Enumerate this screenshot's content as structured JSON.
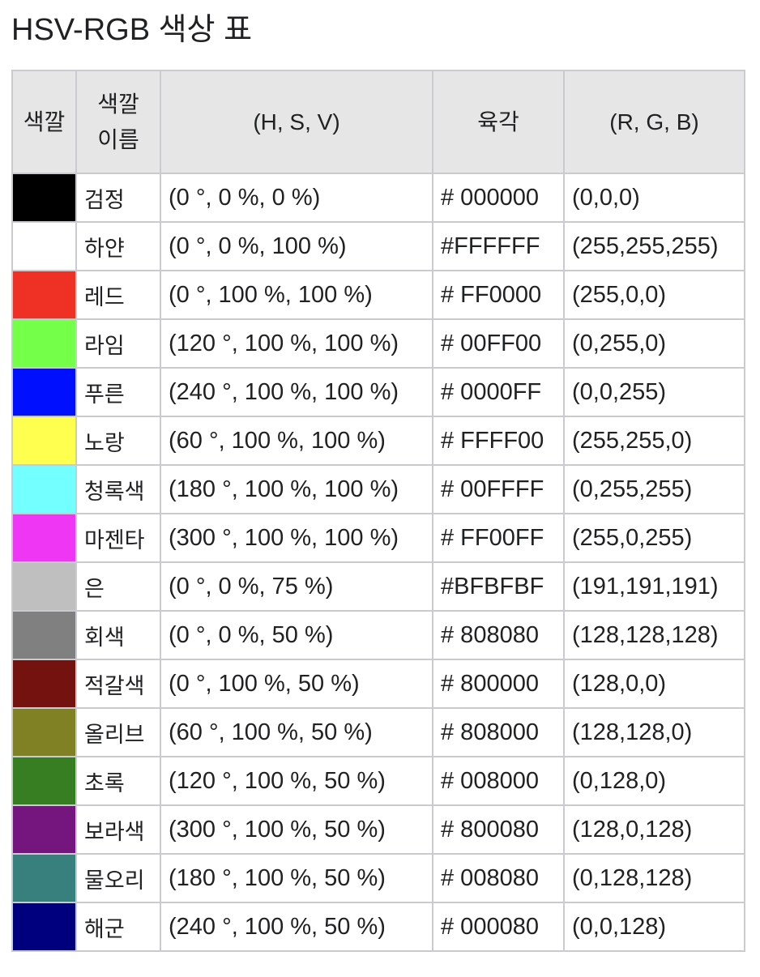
{
  "title": "HSV-RGB 색상 표",
  "headers": {
    "swatch": "색깔",
    "name_line1": "색깔",
    "name_line2": "이름",
    "hsv": "(H, S, V)",
    "hex": "육각",
    "rgb": "(R, G, B)"
  },
  "rows": [
    {
      "color": "#000000",
      "name": "검정",
      "hsv": "(0 °, 0 %, 0 %)",
      "hex": "# 000000",
      "rgb": "(0,0,0)"
    },
    {
      "color": "#FFFFFF",
      "name": "하얀",
      "hsv": "(0 °, 0 %, 100 %)",
      "hex": "#FFFFFF",
      "rgb": "(255,255,255)"
    },
    {
      "color": "#EE3124",
      "name": "레드",
      "hsv": "(0 °, 100 %, 100 %)",
      "hex": "# FF0000",
      "rgb": "(255,0,0)"
    },
    {
      "color": "#74FF48",
      "name": "라임",
      "hsv": "(120 °, 100 %, 100 %)",
      "hex": "# 00FF00",
      "rgb": "(0,255,0)"
    },
    {
      "color": "#0010FF",
      "name": "푸른",
      "hsv": "(240 °, 100 %, 100 %)",
      "hex": "# 0000FF",
      "rgb": "(0,0,255)"
    },
    {
      "color": "#FFFF4F",
      "name": "노랑",
      "hsv": "(60 °, 100 %, 100 %)",
      "hex": "# FFFF00",
      "rgb": "(255,255,0)"
    },
    {
      "color": "#73FFFF",
      "name": "청록색",
      "hsv": "(180 °, 100 %, 100 %)",
      "hex": "# 00FFFF",
      "rgb": "(0,255,255)"
    },
    {
      "color": "#EF36F5",
      "name": "마젠타",
      "hsv": "(300 °, 100 %, 100 %)",
      "hex": "# FF00FF",
      "rgb": "(255,0,255)"
    },
    {
      "color": "#BFBFBF",
      "name": "은",
      "hsv": "(0 °, 0 %, 75 %)",
      "hex": "#BFBFBF",
      "rgb": "(191,191,191)"
    },
    {
      "color": "#808080",
      "name": "회색",
      "hsv": "(0 °, 0 %, 50 %)",
      "hex": "# 808080",
      "rgb": "(128,128,128)"
    },
    {
      "color": "#74120F",
      "name": "적갈색",
      "hsv": "(0 °, 100 %, 50 %)",
      "hex": "# 800000",
      "rgb": "(128,0,0)"
    },
    {
      "color": "#808025",
      "name": "올리브",
      "hsv": "(60 °, 100 %, 50 %)",
      "hex": "# 808000",
      "rgb": "(128,128,0)"
    },
    {
      "color": "#377D22",
      "name": "초록",
      "hsv": "(120 °, 100 %, 50 %)",
      "hex": "# 008000",
      "rgb": "(0,128,0)"
    },
    {
      "color": "#75157E",
      "name": "보라색",
      "hsv": "(300 °, 100 %, 50 %)",
      "hex": "# 800080",
      "rgb": "(128,0,128)"
    },
    {
      "color": "#37807E",
      "name": "물오리",
      "hsv": "(180 °, 100 %, 50 %)",
      "hex": "# 008080",
      "rgb": "(0,128,128)"
    },
    {
      "color": "#00007F",
      "name": "해군",
      "hsv": "(240 °, 100 %, 50 %)",
      "hex": "# 000080",
      "rgb": "(0,0,128)"
    }
  ]
}
